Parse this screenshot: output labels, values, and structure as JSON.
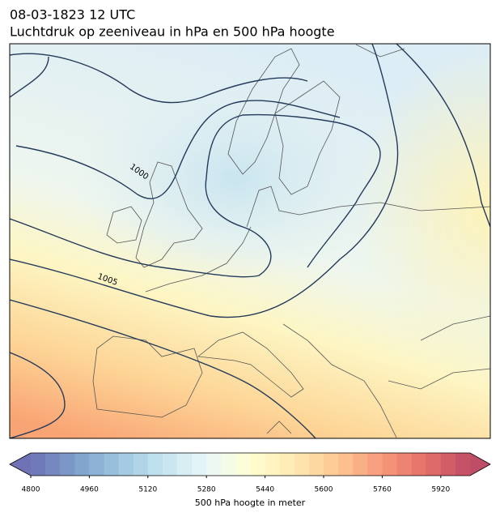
{
  "header": {
    "title": "08-03-1823 12 UTC",
    "subtitle": "Luchtdruk op zeeniveau in hPa en 500 hPa hoogte"
  },
  "map": {
    "contour_labels": [
      "1000",
      "1005"
    ]
  },
  "colorbar": {
    "lim": [
      4800,
      6000
    ],
    "step": 40,
    "ticks": [
      4800,
      4960,
      5120,
      5280,
      5440,
      5600,
      5760,
      5920
    ],
    "label": "500 hPa hoogte in meter"
  }
}
